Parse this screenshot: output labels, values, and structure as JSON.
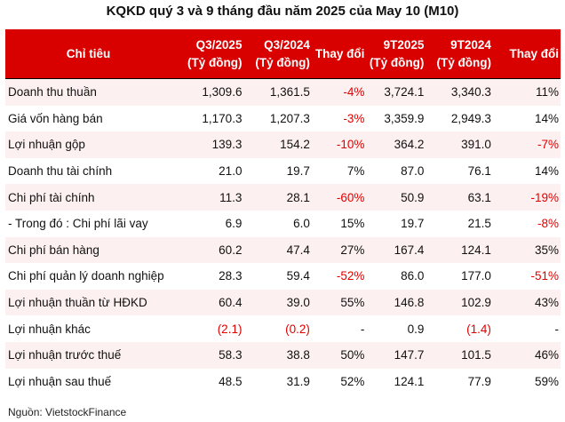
{
  "title": "KQKD quý 3 và 9 tháng đầu năm 2025 của May 10 (M10)",
  "headers": [
    "Chỉ tiêu",
    "Q3/2025 (Tỷ đồng)",
    "Q3/2024 (Tỷ đồng)",
    "Thay đổi",
    "9T2025 (Tỷ đồng)",
    "9T2024 (Tỷ đồng)",
    "Thay đổi"
  ],
  "colors": {
    "header_bg": "#d90000",
    "negative": "#e00000",
    "stripe": "#fdf0f0"
  },
  "rows": [
    [
      "Doanh thu thuần",
      "1,309.6",
      "1,361.5",
      "-4%",
      "3,724.1",
      "3,340.3",
      "11%"
    ],
    [
      "Giá vốn hàng bán",
      "1,170.3",
      "1,207.3",
      "-3%",
      "3,359.9",
      "2,949.3",
      "14%"
    ],
    [
      "Lợi nhuận gộp",
      "139.3",
      "154.2",
      "-10%",
      "364.2",
      "391.0",
      "-7%"
    ],
    [
      "Doanh thu tài chính",
      "21.0",
      "19.7",
      "7%",
      "87.0",
      "76.1",
      "14%"
    ],
    [
      "Chi phí tài chính",
      "11.3",
      "28.1",
      "-60%",
      "50.9",
      "63.1",
      "-19%"
    ],
    [
      "- Trong đó : Chi phí lãi vay",
      "6.9",
      "6.0",
      "15%",
      "19.7",
      "21.5",
      "-8%"
    ],
    [
      "Chi phí bán hàng",
      "60.2",
      "47.4",
      "27%",
      "167.4",
      "124.1",
      "35%"
    ],
    [
      "Chi phí quản lý doanh nghiệp",
      "28.3",
      "59.4",
      "-52%",
      "86.0",
      "177.0",
      "-51%"
    ],
    [
      "Lợi nhuận thuần từ HĐKD",
      "60.4",
      "39.0",
      "55%",
      "146.8",
      "102.9",
      "43%"
    ],
    [
      "Lợi nhuận khác",
      "(2.1)",
      "(0.2)",
      "-",
      "0.9",
      "(1.4)",
      "-"
    ],
    [
      "Lợi nhuận trước thuế",
      "58.3",
      "38.8",
      "50%",
      "147.7",
      "101.5",
      "46%"
    ],
    [
      "Lợi nhuận sau thuế",
      "48.5",
      "31.9",
      "52%",
      "124.1",
      "77.9",
      "59%"
    ]
  ],
  "source": "Nguồn: VietstockFinance"
}
